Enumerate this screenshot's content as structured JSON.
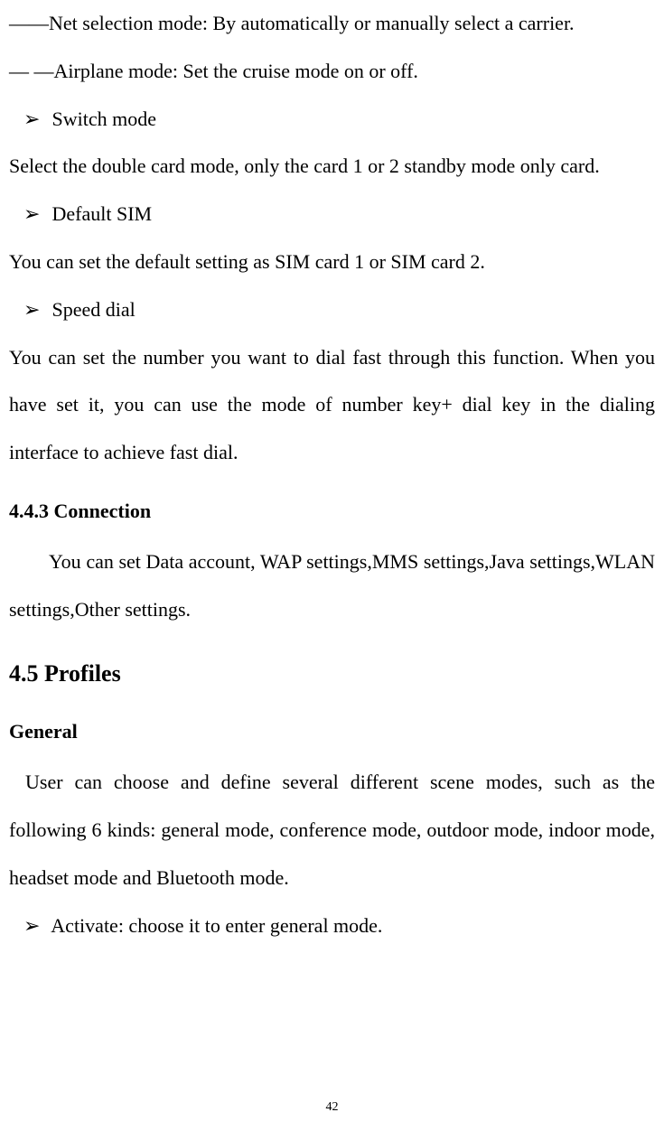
{
  "colors": {
    "text": "#000000",
    "background": "#ffffff"
  },
  "typography": {
    "body_font": "Times New Roman",
    "body_size_pt": 16,
    "heading_large_size_pt": 20,
    "line_height_multiplier": 2.4
  },
  "dash_lines": [
    "――Net selection mode: By automatically or manually select a carrier.",
    "― ―Airplane mode: Set the cruise mode on or off."
  ],
  "sections": [
    {
      "bullet": "Switch mode",
      "body": "Select the double card mode, only the card 1 or 2 standby mode only card."
    },
    {
      "bullet": "Default SIM",
      "body": "You can set the default setting as SIM card 1 or SIM card 2."
    },
    {
      "bullet": "Speed dial",
      "body": "You can set the number you want to dial fast through this function. When you have set it, you can use the mode of number key+ dial key in the dialing interface to achieve fast dial."
    }
  ],
  "heading_connection": "4.4.3 Connection",
  "connection_body": "You can set Data account, WAP settings,MMS settings,Java settings,WLAN settings,Other settings.",
  "heading_profiles": "4.5 Profiles",
  "heading_general": "General",
  "general_body": "User can choose and define several different scene modes, such as the following 6 kinds: general mode, conference mode, outdoor mode, indoor mode, headset mode and Bluetooth mode.",
  "activate_bullet": "Activate: choose it to enter general mode.",
  "arrow_glyph": "➢",
  "page_number": "42"
}
